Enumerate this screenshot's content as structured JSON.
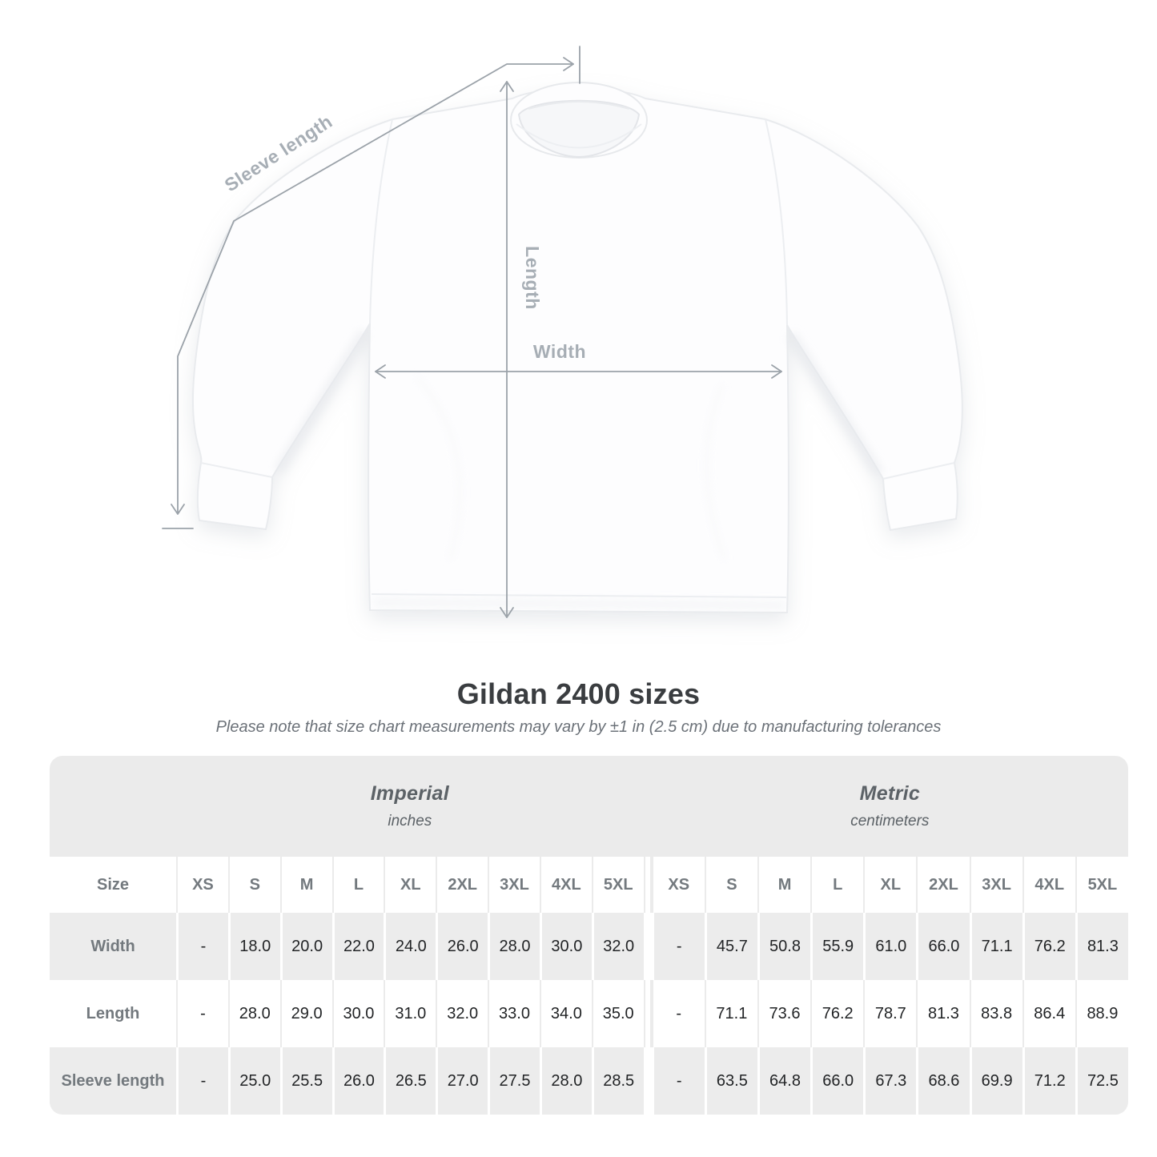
{
  "page": {
    "background": "#ffffff"
  },
  "diagram": {
    "sleeve_length_label": "Sleeve length",
    "length_label": "Length",
    "width_label": "Width",
    "line_color": "#9ba2a9",
    "label_color": "#a7aeb5"
  },
  "heading": {
    "title": "Gildan 2400 sizes",
    "subtitle": "Please note that size chart measurements may vary by ±1 in (2.5 cm) due to manufacturing tolerances"
  },
  "chart_data": {
    "type": "table",
    "title": "Gildan 2400 sizes",
    "size_column_header": "Size",
    "sections": [
      {
        "name": "Imperial",
        "unit": "inches"
      },
      {
        "name": "Metric",
        "unit": "centimeters"
      }
    ],
    "sizes": [
      "XS",
      "S",
      "M",
      "L",
      "XL",
      "2XL",
      "3XL",
      "4XL",
      "5XL"
    ],
    "rows": [
      {
        "label": "Width",
        "imperial": [
          "-",
          "18.0",
          "20.0",
          "22.0",
          "24.0",
          "26.0",
          "28.0",
          "30.0",
          "32.0"
        ],
        "metric": [
          "-",
          "45.7",
          "50.8",
          "55.9",
          "61.0",
          "66.0",
          "71.1",
          "76.2",
          "81.3"
        ]
      },
      {
        "label": "Length",
        "imperial": [
          "-",
          "28.0",
          "29.0",
          "30.0",
          "31.0",
          "32.0",
          "33.0",
          "34.0",
          "35.0"
        ],
        "metric": [
          "-",
          "71.1",
          "73.6",
          "76.2",
          "78.7",
          "81.3",
          "83.8",
          "86.4",
          "88.9"
        ]
      },
      {
        "label": "Sleeve length",
        "imperial": [
          "-",
          "25.0",
          "25.5",
          "26.0",
          "26.5",
          "27.0",
          "27.5",
          "28.0",
          "28.5"
        ],
        "metric": [
          "-",
          "63.5",
          "64.8",
          "66.0",
          "67.3",
          "68.6",
          "69.9",
          "71.2",
          "72.5"
        ]
      }
    ]
  },
  "colors": {
    "table_band": "#ebebeb",
    "row_stripe": "#ececec",
    "header_text": "#73797e",
    "value_text": "#222426",
    "title_text": "#3a3d40",
    "subtitle_text": "#6b7178",
    "measure_line": "#9ba2a9",
    "measure_label": "#a7aeb5"
  }
}
